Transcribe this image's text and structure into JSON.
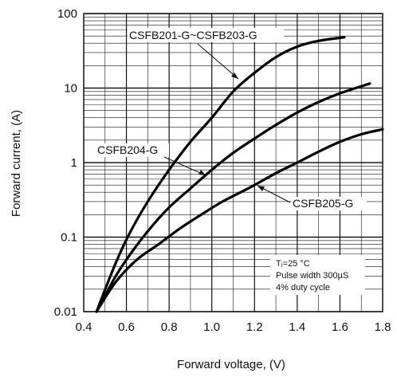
{
  "chart_data": {
    "type": "line",
    "title": "",
    "xlabel": "Forward voltage, (V)",
    "ylabel": "Forward current, (A)",
    "xlim": [
      0.4,
      1.8
    ],
    "ylim": [
      0.01,
      100
    ],
    "yscale": "log",
    "grid": true,
    "x_ticks": [
      "0.4",
      "0.6",
      "0.8",
      "1.0",
      "1.2",
      "1.4",
      "1.6",
      "1.8"
    ],
    "y_ticks": [
      "0.01",
      "0.1",
      "1",
      "10",
      "100"
    ],
    "series": [
      {
        "name": "CSFB201-G~CSFB203-G",
        "points": [
          [
            0.46,
            0.01
          ],
          [
            0.55,
            0.045
          ],
          [
            0.62,
            0.12
          ],
          [
            0.7,
            0.3
          ],
          [
            0.8,
            0.8
          ],
          [
            0.9,
            1.9
          ],
          [
            1.0,
            4.0
          ],
          [
            1.1,
            9.0
          ],
          [
            1.2,
            16.0
          ],
          [
            1.3,
            26.0
          ],
          [
            1.4,
            36.0
          ],
          [
            1.5,
            43.0
          ],
          [
            1.62,
            48.0
          ]
        ]
      },
      {
        "name": "CSFB204-G",
        "points": [
          [
            0.46,
            0.01
          ],
          [
            0.55,
            0.03
          ],
          [
            0.62,
            0.06
          ],
          [
            0.7,
            0.12
          ],
          [
            0.8,
            0.25
          ],
          [
            0.9,
            0.45
          ],
          [
            1.0,
            0.8
          ],
          [
            1.1,
            1.35
          ],
          [
            1.2,
            2.1
          ],
          [
            1.3,
            3.2
          ],
          [
            1.4,
            4.7
          ],
          [
            1.5,
            6.5
          ],
          [
            1.6,
            8.5
          ],
          [
            1.74,
            11.5
          ]
        ]
      },
      {
        "name": "CSFB205-G",
        "points": [
          [
            0.46,
            0.01
          ],
          [
            0.55,
            0.025
          ],
          [
            0.65,
            0.05
          ],
          [
            0.75,
            0.08
          ],
          [
            0.85,
            0.13
          ],
          [
            0.95,
            0.2
          ],
          [
            1.05,
            0.3
          ],
          [
            1.15,
            0.42
          ],
          [
            1.2,
            0.5
          ],
          [
            1.3,
            0.72
          ],
          [
            1.4,
            1.0
          ],
          [
            1.5,
            1.4
          ],
          [
            1.6,
            1.9
          ],
          [
            1.7,
            2.4
          ],
          [
            1.8,
            2.8
          ]
        ]
      }
    ],
    "conditions": [
      "Tⱼ=25 °C",
      "Pulse width 300µS",
      "4% duty cycle"
    ]
  }
}
